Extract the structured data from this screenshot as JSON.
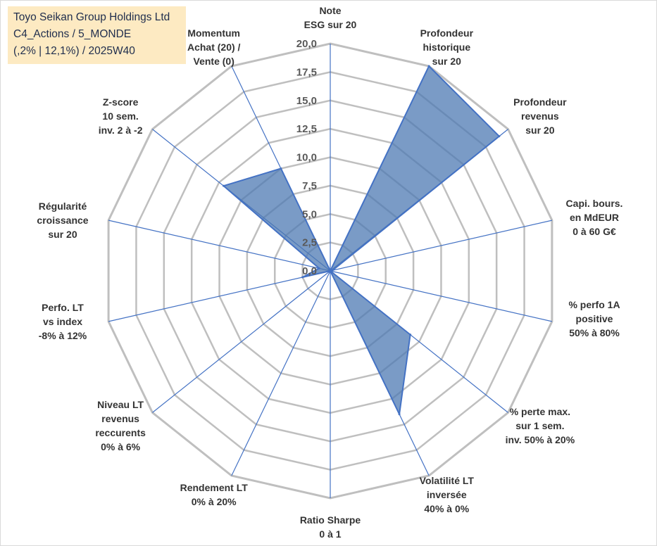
{
  "title_lines": [
    "Toyo Seikan Group Holdings Ltd",
    "C4_Actions / 5_MONDE",
    "(,2% | 12,1%) / 2025W40"
  ],
  "chart_data": {
    "type": "radar",
    "title": "Toyo Seikan Group Holdings Ltd",
    "r_range": [
      0,
      20
    ],
    "r_ticks": [
      "0,0",
      "2,5",
      "5,0",
      "7,5",
      "10,0",
      "12,5",
      "15,0",
      "17,5",
      "20,0"
    ],
    "grid": true,
    "axes": [
      {
        "label": [
          "Note",
          "ESG sur 20"
        ],
        "value": 0
      },
      {
        "label": [
          "Profondeur",
          "historique",
          "sur 20"
        ],
        "value": 20
      },
      {
        "label": [
          "Profondeur",
          "revenus",
          "sur 20"
        ],
        "value": 19
      },
      {
        "label": [
          "Capi. bours.",
          "en MdEUR",
          "0 à 60 G€"
        ],
        "value": 0.2
      },
      {
        "label": [
          "% perfo 1A",
          "positive",
          "50% à 80%"
        ],
        "value": 0
      },
      {
        "label": [
          "% perte max.",
          "sur 1 sem.",
          "inv. 50% à 20%"
        ],
        "value": 9
      },
      {
        "label": [
          "Volatilité LT",
          "inversée",
          "40% à 0%"
        ],
        "value": 14
      },
      {
        "label": [
          "Ratio Sharpe",
          "0 à 1"
        ],
        "value": 0
      },
      {
        "label": [
          "Rendement LT",
          "0% à 20%"
        ],
        "value": 0
      },
      {
        "label": [
          "Niveau LT",
          "revenus",
          "reccurents",
          "0% à 6%"
        ],
        "value": 0
      },
      {
        "label": [
          "Perfo. LT",
          "vs index",
          "-8% à 12%"
        ],
        "value": 2.5
      },
      {
        "label": [
          "Régularité",
          "croissance",
          "sur 20"
        ],
        "value": 1
      },
      {
        "label": [
          "Z-score",
          "10 sem.",
          "inv. 2 à -2"
        ],
        "value": 12
      },
      {
        "label": [
          "Momentum",
          "Achat (20) /",
          "Vente (0)"
        ],
        "value": 10
      }
    ],
    "series": [
      {
        "values": [
          0,
          20,
          19,
          0.2,
          0,
          9,
          14,
          0,
          0,
          0,
          2.5,
          1,
          12,
          10
        ]
      }
    ]
  },
  "colors": {
    "fill": "#4d7ab3",
    "stroke": "#4472c4",
    "grid": "#bfbfbf",
    "spoke": "#4472c4",
    "title_bg": "#fdeac2"
  }
}
